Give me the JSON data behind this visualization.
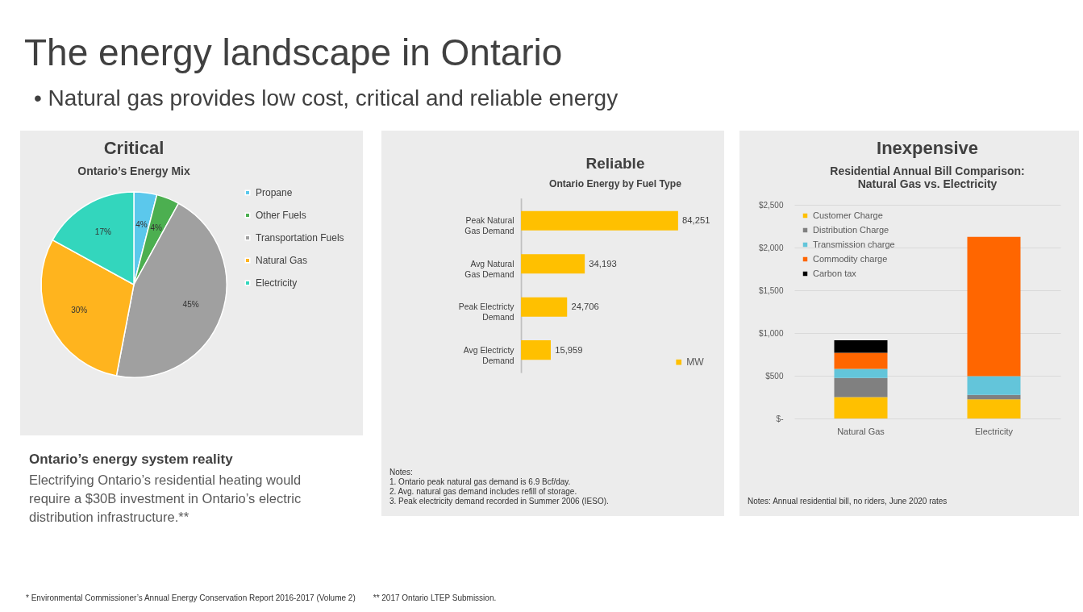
{
  "chart_data": [
    {
      "type": "other",
      "title": "The energy landscape in Ontario",
      "subtitle": "• Natural gas provides low cost, critical and reliable energy"
    },
    {
      "type": "pie",
      "title": "Critical",
      "subtitle": "Ontario’s Energy Mix",
      "categories": [
        "Propane",
        "Other Fuels",
        "Transportation Fuels",
        "Natural Gas",
        "Electricity"
      ],
      "values": [
        4,
        4,
        45,
        30,
        17
      ],
      "colors": [
        "#5bc8ec",
        "#4caf50",
        "#a0a0a0",
        "#ffb41e",
        "#33d6bd"
      ],
      "value_labels": [
        "4%",
        "4%",
        "45%",
        "30%",
        "17%"
      ],
      "legend": "right"
    },
    {
      "type": "bar",
      "orientation": "horizontal",
      "title": "Reliable",
      "subtitle": "Ontario Energy by Fuel Type",
      "categories": [
        "Peak Natural Gas Demand",
        "Avg Natural Gas Demand",
        "Peak Electricty Demand",
        "Avg Electricty Demand"
      ],
      "series": [
        {
          "name": "MW",
          "color": "#ffc000",
          "values": [
            84251,
            34193,
            24706,
            15959
          ],
          "value_labels": [
            "84,251",
            "34,193",
            "24,706",
            "15,959"
          ]
        }
      ],
      "legend": "bottom right",
      "annotations": [
        "Notes:",
        "1. Ontario peak natural gas demand is 6.9 Bcf/day.",
        "2. Avg. natural gas demand includes refill of storage.",
        "3. Peak electricity demand recorded in Summer 2006 (IESO)."
      ]
    },
    {
      "type": "bar",
      "stacked": true,
      "title": "Inexpensive",
      "subtitle": "Residential Annual Bill Comparison:\nNatural Gas vs. Electricity",
      "categories": [
        "Natural Gas",
        "Electricity"
      ],
      "series": [
        {
          "name": "Customer Charge",
          "color": "#ffc000",
          "values": [
            250,
            225
          ]
        },
        {
          "name": "Distribution  Charge",
          "color": "#808080",
          "values": [
            225,
            50
          ]
        },
        {
          "name": "Transmission charge",
          "color": "#63c5da",
          "values": [
            105,
            220
          ]
        },
        {
          "name": "Commodity charge",
          "color": "#ff6600",
          "values": [
            190,
            1630
          ]
        },
        {
          "name": "Carbon tax",
          "color": "#000000",
          "values": [
            145,
            null
          ]
        }
      ],
      "ylim": [
        0,
        2500
      ],
      "yticks": [
        {
          "value": 0,
          "label": "$-"
        },
        {
          "value": 500,
          "label": "$500"
        },
        {
          "value": 1000,
          "label": "$1,000"
        },
        {
          "value": 1500,
          "label": "$1,500"
        },
        {
          "value": 2000,
          "label": "$2,000"
        },
        {
          "value": 2500,
          "label": "$2,500"
        }
      ],
      "grid": "y",
      "legend": "top left",
      "annotations": [
        "Notes: Annual residential bill, no riders, June 2020 rates"
      ]
    },
    {
      "type": "other",
      "title": "Ontario’s energy system reality",
      "subtitle": "Electrifying Ontario’s residential heating would require a $30B investment in Ontario’s electric distribution infrastructure.**",
      "annotations": [
        "* Environmental Commissioner’s Annual Energy Conservation Report 2016-2017 (Volume 2)",
        "** 2017 Ontario LTEP Submission."
      ]
    }
  ]
}
